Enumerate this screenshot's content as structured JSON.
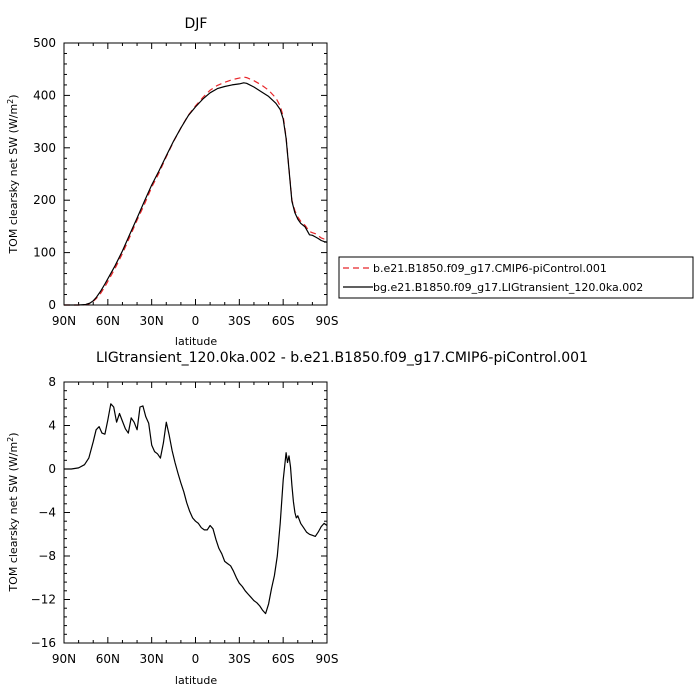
{
  "chart_data": [
    {
      "type": "line",
      "title": "DJF",
      "xlabel": "latitude",
      "ylabel": "TOM clearsky net SW (W/m²)",
      "ylabel_main": "TOM clearsky net SW (W/m",
      "ylabel_sup": "2",
      "ylabel_end": ")",
      "xlim": [
        90,
        -90
      ],
      "ylim": [
        0,
        500
      ],
      "x_ticks": [
        90,
        60,
        30,
        0,
        -30,
        -60,
        -90
      ],
      "x_tick_labels": [
        "90N",
        "60N",
        "30N",
        "0",
        "30S",
        "60S",
        "90S"
      ],
      "y_ticks": [
        0,
        100,
        200,
        300,
        400,
        500
      ],
      "y_tick_labels": [
        "0",
        "100",
        "200",
        "300",
        "400",
        "500"
      ],
      "grid": false,
      "legend_position": "right",
      "series": [
        {
          "name": "b.e21.B1850.f09_g17.CMIP6-piControl.001",
          "color": "#e8262a",
          "dash": "dashed",
          "x": [
            90,
            85,
            80,
            75,
            72,
            70,
            68,
            65,
            62,
            60,
            55,
            50,
            45,
            40,
            35,
            30,
            25,
            20,
            15,
            10,
            5,
            0,
            -5,
            -10,
            -15,
            -20,
            -25,
            -30,
            -33,
            -35,
            -40,
            -45,
            -50,
            -55,
            -58,
            -60,
            -62,
            -64,
            -66,
            -68,
            -70,
            -72,
            -75,
            -78,
            -80,
            -82,
            -84,
            -86,
            -88,
            -90
          ],
          "y": [
            0,
            0,
            0,
            1,
            3,
            7,
            12,
            22,
            35,
            45,
            70,
            98,
            130,
            162,
            192,
            225,
            252,
            283,
            312,
            338,
            362,
            380,
            396,
            410,
            419,
            425,
            430,
            433,
            435,
            434,
            428,
            420,
            410,
            395,
            380,
            360,
            320,
            260,
            200,
            180,
            168,
            160,
            152,
            140,
            138,
            136,
            132,
            128,
            126,
            125
          ]
        },
        {
          "name": "bg.e21.B1850.f09_g17.LIGtransient_120.0ka.002",
          "color": "#000000",
          "dash": "solid",
          "x": [
            90,
            85,
            80,
            75,
            72,
            70,
            68,
            65,
            62,
            60,
            55,
            50,
            45,
            40,
            35,
            30,
            25,
            20,
            15,
            10,
            5,
            0,
            -5,
            -10,
            -15,
            -20,
            -25,
            -30,
            -33,
            -35,
            -40,
            -45,
            -50,
            -55,
            -58,
            -60,
            -62,
            -64,
            -66,
            -68,
            -70,
            -72,
            -75,
            -78,
            -80,
            -82,
            -84,
            -86,
            -88,
            -90
          ],
          "y": [
            0,
            0,
            0,
            1,
            4,
            8,
            14,
            26,
            40,
            50,
            75,
            103,
            135,
            166,
            198,
            229,
            256,
            285,
            313,
            338,
            361,
            378,
            393,
            405,
            413,
            417,
            420,
            422,
            424,
            423,
            416,
            407,
            398,
            385,
            373,
            355,
            318,
            258,
            198,
            176,
            164,
            156,
            149,
            134,
            133,
            130,
            127,
            123,
            121,
            120
          ]
        }
      ]
    },
    {
      "type": "line",
      "title": "LIGtransient_120.0ka.002 - b.e21.B1850.f09_g17.CMIP6-piControl.001",
      "xlabel": "latitude",
      "ylabel": "TOM clearsky net SW (W/m²)",
      "ylabel_main": "TOM clearsky net SW (W/m",
      "ylabel_sup": "2",
      "ylabel_end": ")",
      "xlim": [
        90,
        -90
      ],
      "ylim": [
        -16,
        8
      ],
      "x_ticks": [
        90,
        60,
        30,
        0,
        -30,
        -60,
        -90
      ],
      "x_tick_labels": [
        "90N",
        "60N",
        "30N",
        "0",
        "30S",
        "60S",
        "90S"
      ],
      "y_ticks": [
        -16,
        -12,
        -8,
        -4,
        0,
        4,
        8
      ],
      "y_tick_labels": [
        "−16",
        "−12",
        "−8",
        "−4",
        "0",
        "4",
        "8"
      ],
      "grid": false,
      "series": [
        {
          "color": "#000000",
          "dash": "solid",
          "x": [
            90,
            85,
            80,
            76,
            73,
            70,
            68,
            66,
            64,
            62,
            60,
            58,
            56,
            54,
            52,
            50,
            48,
            46,
            44,
            42,
            40,
            38,
            36,
            34,
            32,
            30,
            28,
            26,
            24,
            22,
            20,
            18,
            16,
            14,
            12,
            10,
            8,
            6,
            4,
            2,
            0,
            -2,
            -4,
            -6,
            -8,
            -10,
            -12,
            -14,
            -16,
            -18,
            -20,
            -22,
            -24,
            -26,
            -28,
            -30,
            -32,
            -34,
            -36,
            -38,
            -40,
            -42,
            -44,
            -46,
            -48,
            -50,
            -52,
            -54,
            -56,
            -58,
            -60,
            -62,
            -63,
            -64,
            -65,
            -66,
            -67,
            -68,
            -69,
            -70,
            -72,
            -74,
            -76,
            -78,
            -80,
            -82,
            -84,
            -86,
            -88,
            -90
          ],
          "y": [
            0,
            0,
            0.1,
            0.4,
            1.0,
            2.5,
            3.6,
            3.9,
            3.3,
            3.2,
            4.5,
            6.0,
            5.7,
            4.3,
            5.1,
            4.4,
            3.7,
            3.3,
            4.7,
            4.3,
            3.6,
            5.7,
            5.8,
            4.8,
            4.2,
            2.2,
            1.6,
            1.4,
            1.0,
            2.4,
            4.3,
            3.1,
            1.7,
            0.6,
            -0.4,
            -1.3,
            -2.1,
            -3.1,
            -3.9,
            -4.5,
            -4.8,
            -5.0,
            -5.4,
            -5.6,
            -5.6,
            -5.2,
            -5.5,
            -6.5,
            -7.3,
            -7.8,
            -8.5,
            -8.7,
            -8.9,
            -9.4,
            -10.0,
            -10.5,
            -10.8,
            -11.2,
            -11.5,
            -11.8,
            -12.1,
            -12.3,
            -12.6,
            -13.0,
            -13.3,
            -12.4,
            -11.0,
            -9.8,
            -8.0,
            -5.0,
            -1.0,
            1.5,
            0.6,
            1.2,
            0.2,
            -1.5,
            -3.0,
            -4.0,
            -4.5,
            -4.3,
            -5.0,
            -5.4,
            -5.8,
            -6.0,
            -6.1,
            -6.2,
            -5.8,
            -5.3,
            -5.0,
            -5.2
          ]
        }
      ]
    }
  ]
}
